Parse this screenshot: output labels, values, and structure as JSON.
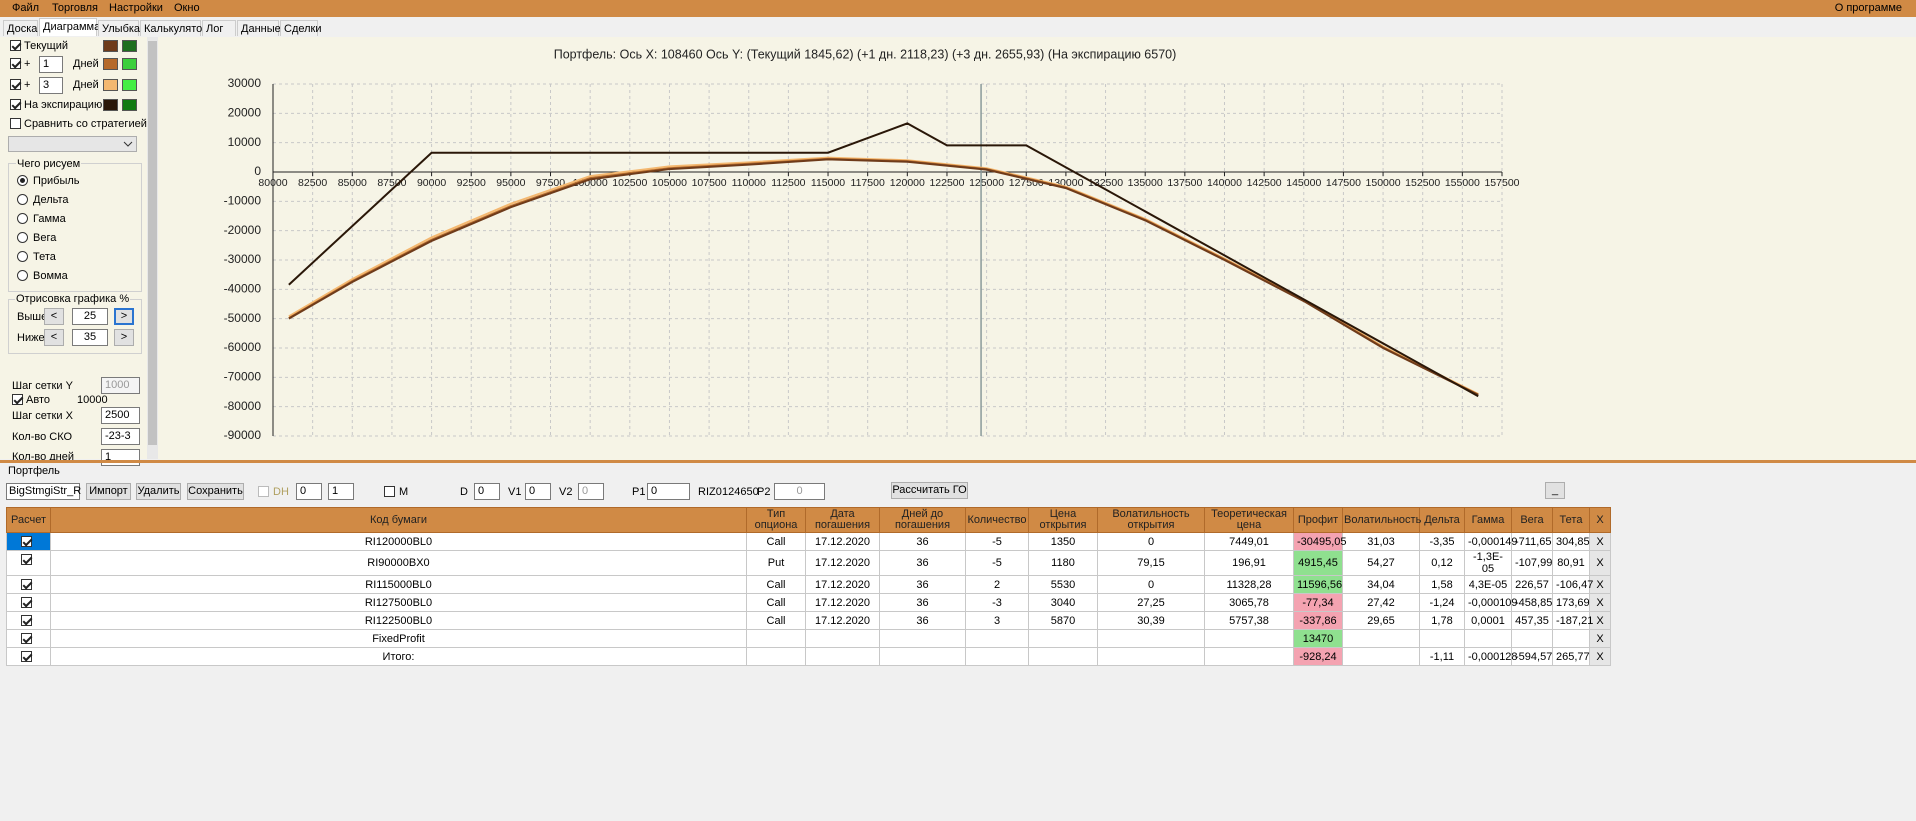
{
  "menu": {
    "items": [
      "Файл",
      "Торговля",
      "Настройки",
      "Окно"
    ],
    "about": "О программе"
  },
  "tabs": {
    "items": [
      "Доска",
      "Диаграмма",
      "Улыбка",
      "Калькулятор",
      "Лог",
      "Данные",
      "Сделки"
    ],
    "active": 1
  },
  "left_panel": {
    "series_rows": [
      {
        "checked": true,
        "label": "Текущий",
        "colors": [
          "#6e3b1a",
          "#1e6e1e"
        ]
      },
      {
        "checked": true,
        "plus": "+",
        "days": "1",
        "unit": "Дней",
        "colors": [
          "#b66a2a",
          "#3ccf3c"
        ]
      },
      {
        "checked": true,
        "plus": "+",
        "days": "3",
        "unit": "Дней",
        "colors": [
          "#f4b870",
          "#44ee44"
        ]
      },
      {
        "checked": true,
        "label": "На экспирацию",
        "colors": [
          "#2a1708",
          "#117a11"
        ]
      }
    ],
    "compare": {
      "checked": false,
      "label": "Сравнить со стратегией"
    },
    "draw_group": {
      "title": "Чего рисуем",
      "options": [
        "Прибыль",
        "Дельта",
        "Гамма",
        "Вега",
        "Тета",
        "Вомма"
      ],
      "selected": 0
    },
    "render_group": {
      "title": "Отрисовка графика %",
      "prev": "<",
      "next": ">",
      "above": {
        "label": "Выше",
        "value": "25"
      },
      "below": {
        "label": "Ниже",
        "value": "35"
      }
    },
    "grid_y": {
      "label": "Шаг сетки Y",
      "value": "1000"
    },
    "auto": {
      "checked": true,
      "label": "Авто",
      "value": "10000"
    },
    "grid_x": {
      "label": "Шаг сетки X",
      "value": "2500"
    },
    "sko": {
      "label": "Кол-во СКО",
      "value": "-23-3"
    },
    "days": {
      "label": "Кол-во дней",
      "value": "1"
    }
  },
  "chart_data": {
    "type": "line",
    "title": "Портфель: Ось X: 108460 Ось Y:  (Текущий 1845,62)  (+1 дн. 2118,23)  (+3 дн. 2655,93)  (На экспирацию 6570)",
    "xlim": [
      80000,
      157500
    ],
    "xticks": [
      80000,
      82500,
      85000,
      87500,
      90000,
      92500,
      95000,
      97500,
      100000,
      102500,
      105000,
      107500,
      110000,
      112500,
      115000,
      117500,
      120000,
      122500,
      125000,
      127500,
      130000,
      132500,
      135000,
      137500,
      140000,
      142500,
      145000,
      147500,
      150000,
      152500,
      155000,
      157500
    ],
    "ylim": [
      -90000,
      30000
    ],
    "yticks": [
      30000,
      20000,
      10000,
      0,
      -10000,
      -20000,
      -30000,
      -40000,
      -50000,
      -60000,
      -70000,
      -80000,
      -90000
    ],
    "grid": true,
    "series": [
      {
        "color": "#f4b870",
        "x": [
          81000,
          85000,
          90000,
          95000,
          100000,
          105000,
          110000,
          115000,
          120000,
          125000,
          130000,
          135000,
          140000,
          145000,
          150000,
          156000
        ],
        "values": [
          -49200,
          -36500,
          -22300,
          -10800,
          -1400,
          1900,
          3300,
          4900,
          4000,
          1300,
          -5000,
          -16000,
          -29500,
          -43500,
          -59500,
          -75700
        ]
      },
      {
        "color": "#b66a2a",
        "x": [
          81000,
          85000,
          90000,
          95000,
          100000,
          105000,
          110000,
          115000,
          120000,
          125000,
          130000,
          135000,
          140000,
          145000,
          150000,
          156000
        ],
        "values": [
          -49800,
          -37200,
          -23100,
          -11600,
          -2100,
          1300,
          2800,
          4500,
          3700,
          1000,
          -5300,
          -16300,
          -29800,
          -43800,
          -59800,
          -75900
        ]
      },
      {
        "name": "Текущий",
        "color": "#6e3b1a",
        "x": [
          81000,
          85000,
          90000,
          95000,
          100000,
          105000,
          110000,
          115000,
          120000,
          125000,
          130000,
          135000,
          140000,
          145000,
          150000,
          156000
        ],
        "values": [
          -50000,
          -37500,
          -23500,
          -12000,
          -2500,
          1000,
          2500,
          4300,
          3500,
          800,
          -5500,
          -16500,
          -30000,
          -44000,
          -60000,
          -76000
        ]
      },
      {
        "name": "На экспирацию",
        "color": "#2a1708",
        "x": [
          81000,
          90000,
          115000,
          120000,
          122500,
          127500,
          156000
        ],
        "values": [
          -38430,
          6570,
          6570,
          16570,
          9070,
          9070,
          -76430
        ]
      }
    ]
  },
  "portfolio": {
    "title": "Портфель",
    "strategy": "BigStmgiStr_R",
    "buttons": [
      "Импорт",
      "Удалить",
      "Сохранить"
    ],
    "dh": {
      "checked": false,
      "label": "DH"
    },
    "spin1": "0",
    "spin2": "1",
    "m": {
      "checked": false,
      "label": "M"
    },
    "d": {
      "label": "D",
      "value": "0"
    },
    "v1": {
      "label": "V1",
      "value": "0"
    },
    "v2": {
      "label": "V2",
      "value": "0"
    },
    "p1": {
      "label": "P1",
      "value": "0"
    },
    "riz0": {
      "label": "RIZ0",
      "value": 124650
    },
    "p2": {
      "label": "P2",
      "value": "0"
    },
    "calc": "Рассчитать ГО",
    "minimize": "_"
  },
  "table": {
    "columns": [
      "Расчет",
      "Код бумаги",
      "Тип опциона",
      "Дата погашения",
      "Дней до погашения",
      "Количество",
      "Цена открытия",
      "Волатильность открытия",
      "Теоретическая цена",
      "Профит",
      "Волатильность",
      "Дельта",
      "Гамма",
      "Вега",
      "Тета",
      "X"
    ],
    "rows": [
      [
        true,
        "RI120000BL0",
        "Call",
        "17.12.2020",
        "36",
        "-5",
        "1350",
        "0",
        "7449,01",
        "-30495,05",
        "31,03",
        "-3,35",
        "-0,000149",
        "-711,65",
        "304,85",
        "X"
      ],
      [
        true,
        "RI90000BX0",
        "Put",
        "17.12.2020",
        "36",
        "-5",
        "1180",
        "79,15",
        "196,91",
        "4915,45",
        "54,27",
        "0,12",
        "-1,3E-05",
        "-107,99",
        "80,91",
        "X"
      ],
      [
        true,
        "RI115000BL0",
        "Call",
        "17.12.2020",
        "36",
        "2",
        "5530",
        "0",
        "11328,28",
        "11596,56",
        "34,04",
        "1,58",
        "4,3E-05",
        "226,57",
        "-106,47",
        "X"
      ],
      [
        true,
        "RI127500BL0",
        "Call",
        "17.12.2020",
        "36",
        "-3",
        "3040",
        "27,25",
        "3065,78",
        "-77,34",
        "27,42",
        "-1,24",
        "-0,000109",
        "-458,85",
        "173,69",
        "X"
      ],
      [
        true,
        "RI122500BL0",
        "Call",
        "17.12.2020",
        "36",
        "3",
        "5870",
        "30,39",
        "5757,38",
        "-337,86",
        "29,65",
        "1,78",
        "0,0001",
        "457,35",
        "-187,21",
        "X"
      ],
      [
        true,
        "FixedProfit",
        null,
        null,
        null,
        null,
        null,
        null,
        null,
        "13470",
        null,
        null,
        null,
        null,
        null,
        "X"
      ],
      [
        true,
        "Итого:",
        null,
        null,
        null,
        null,
        null,
        null,
        null,
        "-928,24",
        null,
        "-1,11",
        "-0,000128",
        "-594,57",
        "265,77",
        "X"
      ]
    ]
  }
}
